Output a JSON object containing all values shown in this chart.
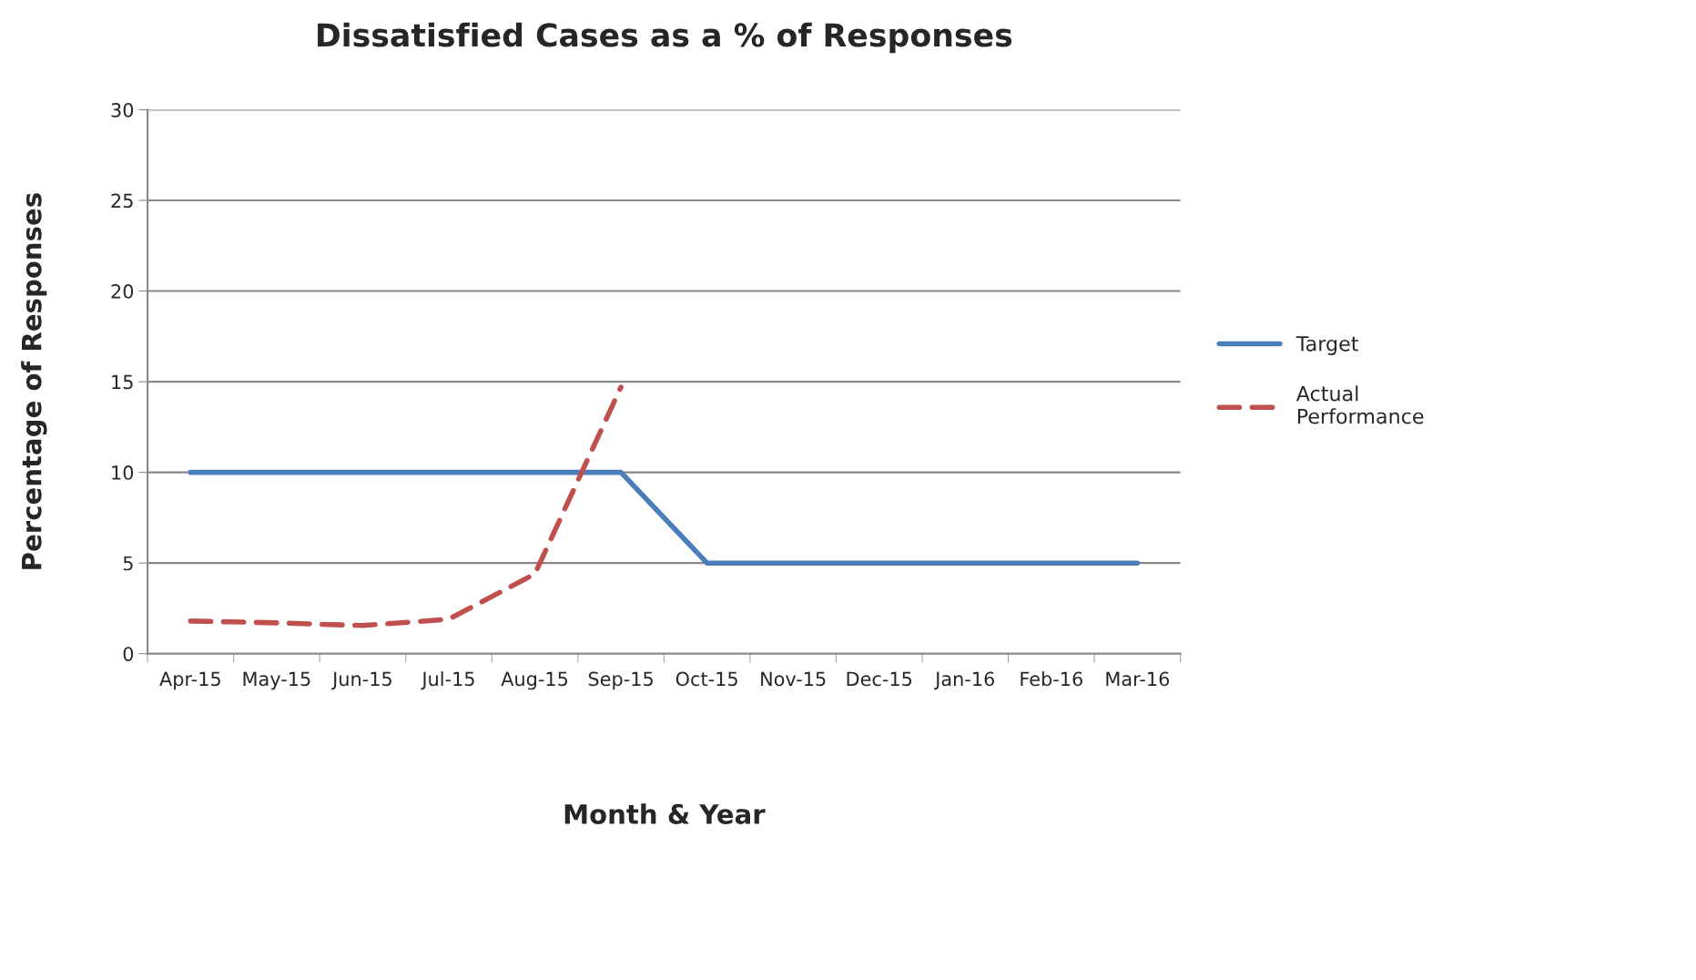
{
  "chart_data": {
    "type": "line",
    "title": "Dissatisfied Cases as a % of Responses",
    "xlabel": "Month & Year",
    "ylabel": "Percentage of Responses",
    "categories": [
      "Apr-15",
      "May-15",
      "Jun-15",
      "Jul-15",
      "Aug-15",
      "Sep-15",
      "Oct-15",
      "Nov-15",
      "Dec-15",
      "Jan-16",
      "Feb-16",
      "Mar-16"
    ],
    "series": [
      {
        "name": "Target",
        "color": "#4a7ebb",
        "line_style": "solid",
        "values": [
          10,
          10,
          10,
          10,
          10,
          10,
          5,
          5,
          5,
          5,
          5,
          5
        ]
      },
      {
        "name": "Actual Performance",
        "color": "#c0504d",
        "line_style": "dashed",
        "values": [
          1.8,
          1.7,
          1.55,
          1.9,
          4.4,
          14.7,
          null,
          null,
          null,
          null,
          null,
          null
        ]
      }
    ],
    "ylim": [
      0,
      30
    ],
    "yticks": [
      0,
      5,
      10,
      15,
      20,
      25,
      30
    ],
    "grid": "y",
    "legend": "right",
    "marker": "none"
  }
}
